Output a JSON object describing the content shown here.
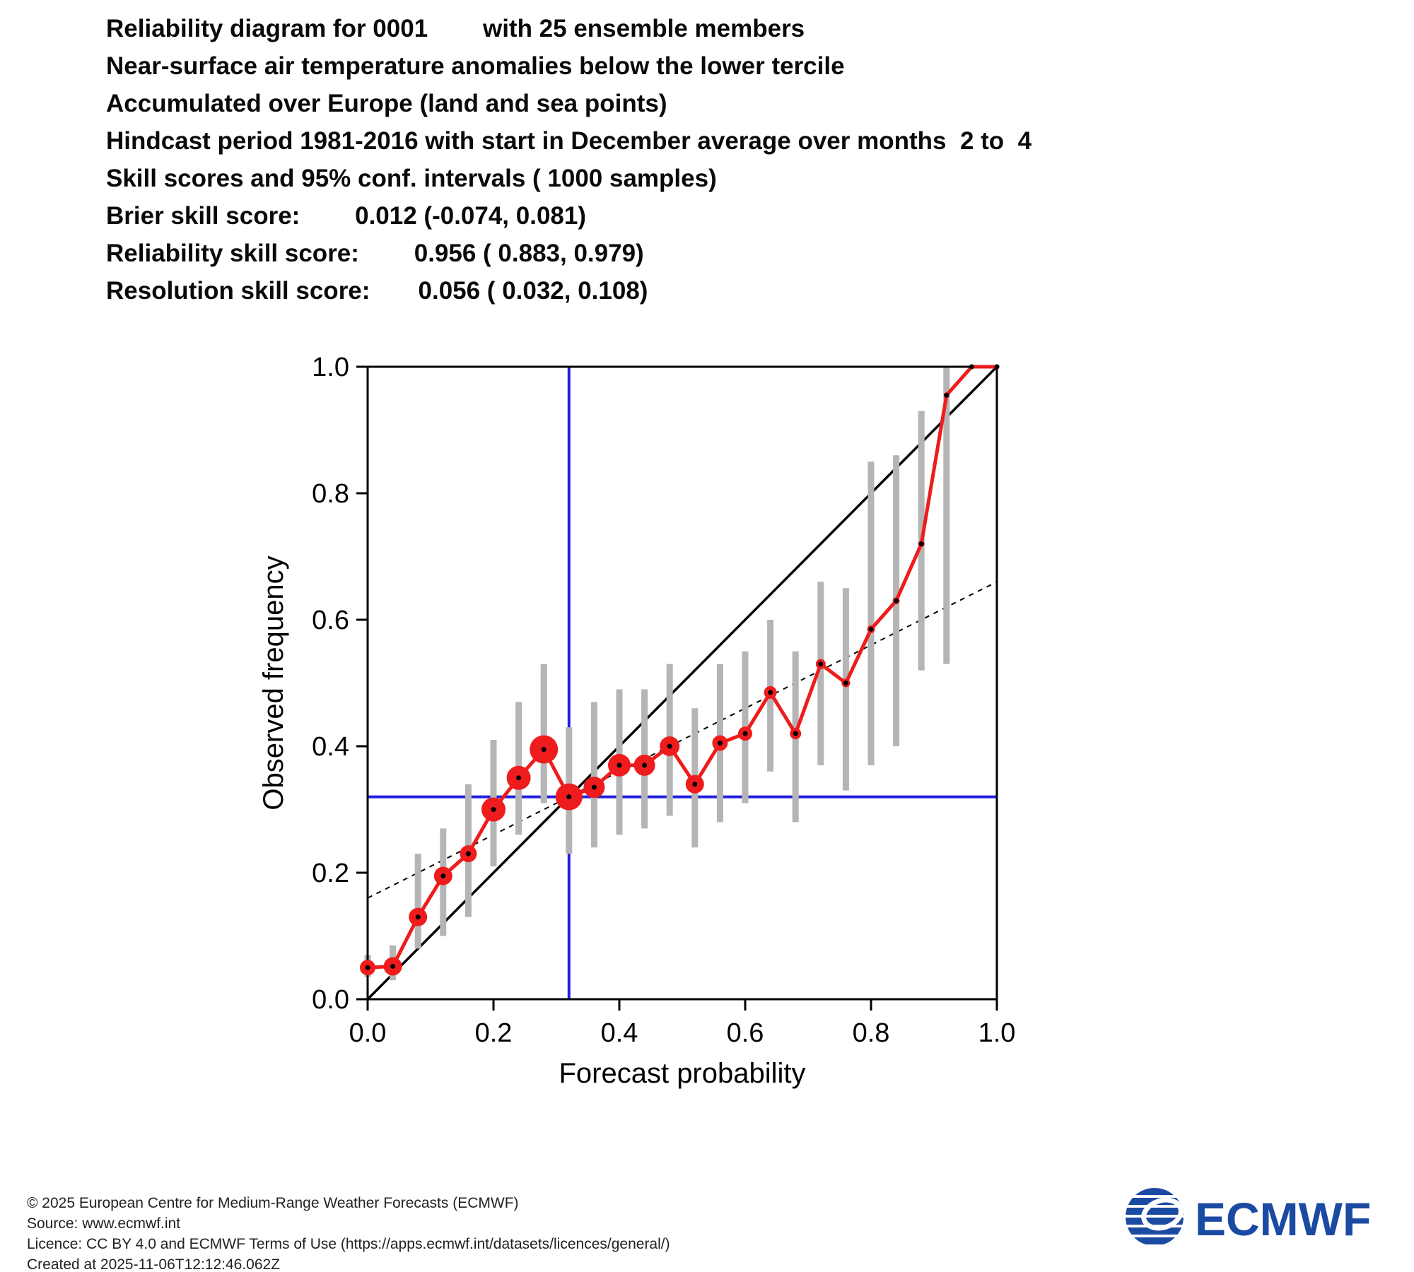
{
  "header": {
    "lines": [
      "Reliability diagram for 0001        with 25 ensemble members",
      "Near-surface air temperature anomalies below the lower tercile",
      "Accumulated over Europe (land and sea points)",
      "Hindcast period 1981-2016 with start in December average over months  2 to  4",
      "Skill scores and 95% conf. intervals ( 1000 samples)",
      "Brier skill score:        0.012 (-0.074, 0.081)",
      "Reliability skill score:        0.956 ( 0.883, 0.979)",
      "Resolution skill score:       0.056 ( 0.032, 0.108)"
    ]
  },
  "chart_data": {
    "type": "line",
    "title": "",
    "xlabel": "Forecast probability",
    "ylabel": "Observed frequency",
    "xlim": [
      0.0,
      1.0
    ],
    "ylim": [
      0.0,
      1.0
    ],
    "xticks": [
      "0.0",
      "0.2",
      "0.4",
      "0.6",
      "0.8",
      "1.0"
    ],
    "yticks": [
      "0.0",
      "0.2",
      "0.4",
      "0.6",
      "0.8",
      "1.0"
    ],
    "grid": false,
    "climatology_x": 0.32,
    "climatology_y": 0.32,
    "diagonal": {
      "x": [
        0.0,
        1.0
      ],
      "y": [
        0.0,
        1.0
      ]
    },
    "no_skill_line": {
      "x": [
        0.0,
        1.0
      ],
      "y": [
        0.16,
        0.66
      ]
    },
    "colors": {
      "curve": "#ee1c1c",
      "climatology": "#2020e0",
      "ci_bar": "#b5b5b5",
      "diagonal": "#000000"
    },
    "reliability_points": [
      {
        "x": 0.0,
        "y": 0.05,
        "size": 11,
        "ci": [
          0.035,
          0.07
        ]
      },
      {
        "x": 0.04,
        "y": 0.052,
        "size": 13,
        "ci": [
          0.03,
          0.085
        ]
      },
      {
        "x": 0.08,
        "y": 0.13,
        "size": 13,
        "ci": [
          0.08,
          0.23
        ]
      },
      {
        "x": 0.12,
        "y": 0.195,
        "size": 13,
        "ci": [
          0.1,
          0.27
        ]
      },
      {
        "x": 0.16,
        "y": 0.23,
        "size": 12,
        "ci": [
          0.13,
          0.34
        ]
      },
      {
        "x": 0.2,
        "y": 0.3,
        "size": 17,
        "ci": [
          0.21,
          0.41
        ]
      },
      {
        "x": 0.24,
        "y": 0.35,
        "size": 17,
        "ci": [
          0.26,
          0.47
        ]
      },
      {
        "x": 0.28,
        "y": 0.395,
        "size": 20,
        "ci": [
          0.31,
          0.53
        ]
      },
      {
        "x": 0.32,
        "y": 0.32,
        "size": 19,
        "ci": [
          0.23,
          0.43
        ]
      },
      {
        "x": 0.36,
        "y": 0.335,
        "size": 15,
        "ci": [
          0.24,
          0.47
        ]
      },
      {
        "x": 0.4,
        "y": 0.37,
        "size": 16,
        "ci": [
          0.26,
          0.49
        ]
      },
      {
        "x": 0.44,
        "y": 0.37,
        "size": 15,
        "ci": [
          0.27,
          0.49
        ]
      },
      {
        "x": 0.48,
        "y": 0.4,
        "size": 14,
        "ci": [
          0.29,
          0.53
        ]
      },
      {
        "x": 0.52,
        "y": 0.34,
        "size": 13,
        "ci": [
          0.24,
          0.46
        ]
      },
      {
        "x": 0.56,
        "y": 0.405,
        "size": 11,
        "ci": [
          0.28,
          0.53
        ]
      },
      {
        "x": 0.6,
        "y": 0.42,
        "size": 10,
        "ci": [
          0.31,
          0.55
        ]
      },
      {
        "x": 0.64,
        "y": 0.485,
        "size": 9,
        "ci": [
          0.36,
          0.6
        ]
      },
      {
        "x": 0.68,
        "y": 0.42,
        "size": 8,
        "ci": [
          0.28,
          0.55
        ]
      },
      {
        "x": 0.72,
        "y": 0.53,
        "size": 7,
        "ci": [
          0.37,
          0.66
        ]
      },
      {
        "x": 0.76,
        "y": 0.5,
        "size": 6,
        "ci": [
          0.33,
          0.65
        ]
      },
      {
        "x": 0.8,
        "y": 0.585,
        "size": 5.5,
        "ci": [
          0.37,
          0.85
        ]
      },
      {
        "x": 0.84,
        "y": 0.63,
        "size": 5,
        "ci": [
          0.4,
          0.86
        ]
      },
      {
        "x": 0.88,
        "y": 0.72,
        "size": 4.5,
        "ci": [
          0.52,
          0.93
        ]
      },
      {
        "x": 0.92,
        "y": 0.955,
        "size": 4,
        "ci": [
          0.53,
          1.0
        ]
      },
      {
        "x": 0.96,
        "y": 1.0,
        "size": 3.5,
        "ci": null
      },
      {
        "x": 1.0,
        "y": 1.0,
        "size": 3.5,
        "ci": null
      }
    ]
  },
  "footer": {
    "lines": [
      "© 2025 European Centre for Medium-Range Weather Forecasts (ECMWF)",
      "Source: www.ecmwf.int",
      "Licence: CC BY 4.0 and ECMWF Terms of Use (https://apps.ecmwf.int/datasets/licences/general/)",
      "Created at 2025-11-06T12:12:46.062Z"
    ]
  },
  "logo": {
    "text": "ECMWF",
    "color": "#1b4aa2"
  }
}
